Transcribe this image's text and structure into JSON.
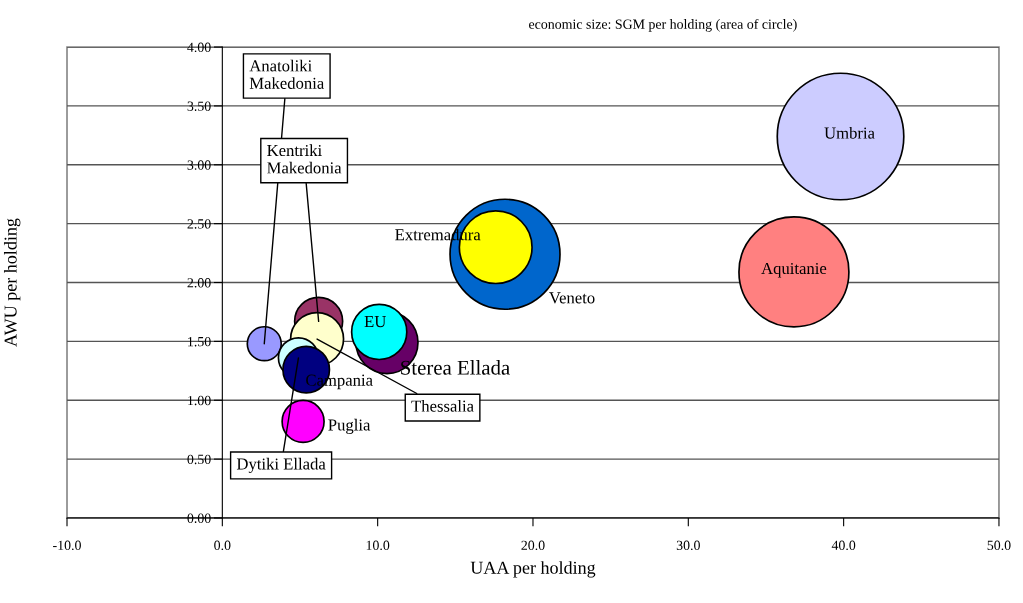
{
  "chart_data": {
    "type": "bubble",
    "xlabel": "UAA per holding",
    "ylabel": "AWU per holding",
    "annotations": [
      "economic size: SGM per holding (area of circle)"
    ],
    "xlim": [
      -10,
      50
    ],
    "xticks": [
      {
        "value": -10,
        "label": "-10.0"
      },
      {
        "value": 0,
        "label": "0.0"
      },
      {
        "value": 10,
        "label": "10.0"
      },
      {
        "value": 20,
        "label": "20.0"
      },
      {
        "value": 30,
        "label": "30.0"
      },
      {
        "value": 40,
        "label": "40.0"
      },
      {
        "value": 50,
        "label": "50.0"
      }
    ],
    "ylim": [
      0,
      4
    ],
    "yticks": [
      {
        "value": 0,
        "label": "0.00"
      },
      {
        "value": 0.5,
        "label": "0.50"
      },
      {
        "value": 1,
        "label": "1.00"
      },
      {
        "value": 1.5,
        "label": "1.50"
      },
      {
        "value": 2,
        "label": "2.00"
      },
      {
        "value": 2.5,
        "label": "2.50"
      },
      {
        "value": 3,
        "label": "3.00"
      },
      {
        "value": 3.5,
        "label": "3.50"
      },
      {
        "value": 4,
        "label": "4.00"
      }
    ],
    "grid": "y",
    "legend": false,
    "series": [
      {
        "name": "Anatoliki Makedonia",
        "color": "#9999ff",
        "x": [
          2.7
        ],
        "values": [
          1.48
        ],
        "sizes": [
          0.072
        ]
      },
      {
        "name": "Kentriki Makedonia",
        "color": "#993366",
        "x": [
          6.2
        ],
        "values": [
          1.67
        ],
        "sizes": [
          0.144
        ]
      },
      {
        "name": "Thessalia",
        "color": "#ffffcc",
        "x": [
          6.1
        ],
        "values": [
          1.52
        ],
        "sizes": [
          0.175
        ]
      },
      {
        "name": "Dytiki Ellada",
        "color": "#ccffff",
        "x": [
          4.9
        ],
        "values": [
          1.36
        ],
        "sizes": [
          0.1
        ]
      },
      {
        "name": "Campania",
        "color": "#000080",
        "x": [
          5.4
        ],
        "values": [
          1.26
        ],
        "sizes": [
          0.135
        ]
      },
      {
        "name": "Puglia",
        "color": "#ff00ff",
        "x": [
          5.2
        ],
        "values": [
          0.82
        ],
        "sizes": [
          0.11
        ]
      },
      {
        "name": "Sterea Ellada",
        "color": "#660066",
        "x": [
          10.6
        ],
        "values": [
          1.49
        ],
        "sizes": [
          0.24
        ]
      },
      {
        "name": "EU",
        "color": "#00ffff",
        "x": [
          10.1
        ],
        "values": [
          1.58
        ],
        "sizes": [
          0.19
        ]
      },
      {
        "name": "Veneto",
        "color": "#0066cc",
        "x": [
          18.2
        ],
        "values": [
          2.24
        ],
        "sizes": [
          0.755
        ]
      },
      {
        "name": "Extremadura",
        "color": "#ffff00",
        "x": [
          17.6
        ],
        "values": [
          2.3
        ],
        "sizes": [
          0.33
        ]
      },
      {
        "name": "Aquitanie",
        "color": "#ff8080",
        "x": [
          36.8
        ],
        "values": [
          2.09
        ],
        "sizes": [
          0.755
        ]
      },
      {
        "name": "Umbria",
        "color": "#ccccff",
        "x": [
          39.8
        ],
        "values": [
          3.24
        ],
        "sizes": [
          1
        ]
      }
    ]
  }
}
